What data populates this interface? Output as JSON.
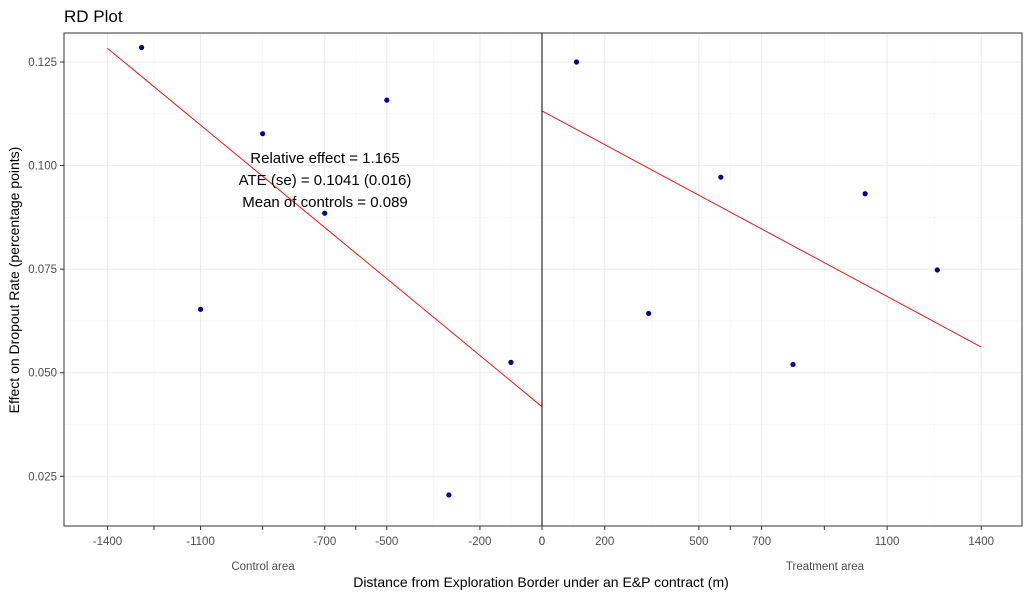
{
  "chart_data": {
    "type": "scatter",
    "title": "RD Plot",
    "xlabel": "Distance from Exploration Border under an E&P contract (m)",
    "ylabel": "Effect on Dropout Rate (percentage points)",
    "ylim": [
      0.013,
      0.132
    ],
    "y_ticks": [
      0.025,
      0.05,
      0.075,
      0.1,
      0.125
    ],
    "y_tick_labels": [
      "0.025",
      "0.050",
      "0.075",
      "0.100",
      "0.125"
    ],
    "grid": true,
    "cutoff": 0,
    "control": {
      "label": "Control area",
      "xlim": [
        -1540,
        0
      ],
      "ticks": [
        -1400,
        -1100,
        -700,
        -500,
        -200,
        0
      ],
      "tick_labels": [
        "-1400",
        "-1100",
        "-700",
        "-500",
        "-200",
        "0"
      ],
      "points": [
        {
          "x": -1290,
          "y": 0.1285
        },
        {
          "x": -1100,
          "y": 0.0653
        },
        {
          "x": -900,
          "y": 0.1077
        },
        {
          "x": -700,
          "y": 0.0885
        },
        {
          "x": -500,
          "y": 0.1158
        },
        {
          "x": -300,
          "y": 0.0205
        },
        {
          "x": -100,
          "y": 0.0525
        }
      ],
      "fit": {
        "x": [
          -1400,
          0
        ],
        "y": [
          0.1283,
          0.0418
        ]
      }
    },
    "treatment": {
      "label": "Treatment area",
      "xlim": [
        0,
        1530
      ],
      "ticks": [
        0,
        200,
        500,
        700,
        1100,
        1400
      ],
      "tick_labels": [
        "0",
        "200",
        "500",
        "700",
        "1100",
        "1400"
      ],
      "points": [
        {
          "x": 110,
          "y": 0.125
        },
        {
          "x": 340,
          "y": 0.0643
        },
        {
          "x": 570,
          "y": 0.0972
        },
        {
          "x": 800,
          "y": 0.052
        },
        {
          "x": 1030,
          "y": 0.0932
        },
        {
          "x": 1260,
          "y": 0.0748
        }
      ],
      "fit": {
        "x": [
          0,
          1400
        ],
        "y": [
          0.1132,
          0.0562
        ]
      }
    },
    "annotation": [
      "Relative effect = 1.165",
      "ATE (se) = 0.1041 (0.016)",
      "Mean of controls = 0.089"
    ],
    "colors": {
      "points": "#00008b",
      "fit_line": "#e31a1c",
      "cutoff_line": "#000000"
    }
  }
}
